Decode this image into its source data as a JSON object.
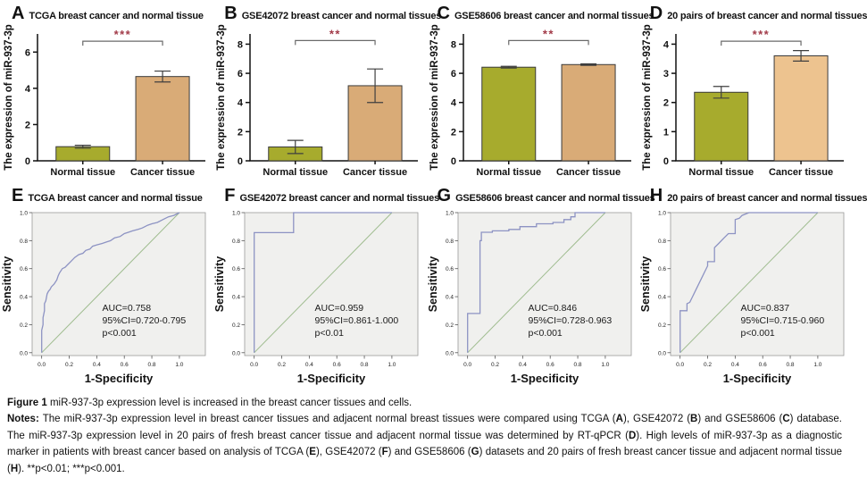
{
  "caption": {
    "title_segments": [
      {
        "t": "Figure 1 ",
        "b": true
      },
      {
        "t": "miR-937-3p expression level is increased in the breast cancer tissues and cells.",
        "b": false
      }
    ],
    "notes_segments": [
      {
        "t": "Notes: ",
        "b": true
      },
      {
        "t": "The miR-937-3p expression level in breast cancer tissues and adjacent normal breast tissues were compared using TCGA (",
        "b": false
      },
      {
        "t": "A",
        "b": true
      },
      {
        "t": "), GSE42072 (",
        "b": false
      },
      {
        "t": "B",
        "b": true
      },
      {
        "t": ") and GSE58606 (",
        "b": false
      },
      {
        "t": "C",
        "b": true
      },
      {
        "t": ") database. The miR-937-3p expression level in 20 pairs of fresh breast cancer tissue and adjacent normal tissue was determined by RT-qPCR (",
        "b": false
      },
      {
        "t": "D",
        "b": true
      },
      {
        "t": "). High levels of miR-937-3p as a diagnostic marker in patients with breast cancer based on analysis of TCGA (",
        "b": false
      },
      {
        "t": "E",
        "b": true
      },
      {
        "t": "), GSE42072 (",
        "b": false
      },
      {
        "t": "F",
        "b": true
      },
      {
        "t": ") and GSE58606 (",
        "b": false
      },
      {
        "t": "G",
        "b": true
      },
      {
        "t": ") datasets and 20 pairs of fresh breast cancer tissue and adjacent normal tissue (",
        "b": false
      },
      {
        "t": "H",
        "b": true
      },
      {
        "t": "). **p<0.01; ***p<0.001.",
        "b": false
      }
    ]
  },
  "chart_data": [
    {
      "type": "bar",
      "panel_letter": "A",
      "title": "TCGA breast cancer and normal tissue",
      "ylabel": "The expression of miR-937-3p",
      "categories": [
        "Normal tissue",
        "Cancer tissue"
      ],
      "values": [
        0.78,
        4.65
      ],
      "errors": [
        0.08,
        0.3
      ],
      "yticks": [
        0,
        2,
        4,
        6
      ],
      "axis_max": 7,
      "bracket_y": 6.6,
      "significance": "***",
      "sig_color": "#a23b49",
      "bar_colors": [
        "#a7ab2d",
        "#d9ab77"
      ]
    },
    {
      "type": "bar",
      "panel_letter": "B",
      "title": "GSE42072  breast cancer and normal tissues",
      "ylabel": "The expression of miR-937-3p",
      "categories": [
        "Normal tissue",
        "Cancer tissue"
      ],
      "values": [
        0.95,
        5.15
      ],
      "errors": [
        0.45,
        1.15
      ],
      "yticks": [
        0,
        2,
        4,
        6,
        8
      ],
      "axis_max": 8.7,
      "bracket_y": 8.25,
      "significance": "**",
      "sig_color": "#a23b49",
      "bar_colors": [
        "#a7ab2d",
        "#d9ab77"
      ]
    },
    {
      "type": "bar",
      "panel_letter": "C",
      "title": "GSE58606 breast cancer and normal tissues",
      "ylabel": "The expression of miR-937-3p",
      "categories": [
        "Normal tissue",
        "Cancer tissue"
      ],
      "values": [
        6.42,
        6.6
      ],
      "errors": [
        0.06,
        0.05
      ],
      "yticks": [
        0,
        2,
        4,
        6,
        8
      ],
      "axis_max": 8.7,
      "bracket_y": 8.25,
      "significance": "**",
      "sig_color": "#a23b49",
      "bar_colors": [
        "#a7ab2d",
        "#d9ab77"
      ]
    },
    {
      "type": "bar",
      "panel_letter": "D",
      "title": "20 pairs of breast cancer and normal tissues",
      "ylabel": "The expression of miR-937-3p",
      "categories": [
        "Normal tissue",
        "Cancer tissue"
      ],
      "values": [
        2.35,
        3.6
      ],
      "errors": [
        0.2,
        0.18
      ],
      "yticks": [
        0,
        1,
        2,
        3,
        4
      ],
      "axis_max": 4.35,
      "bracket_y": 4.1,
      "significance": "***",
      "sig_color": "#a23b49",
      "bar_colors": [
        "#a7ab2d",
        "#edc38f"
      ]
    },
    {
      "type": "line",
      "panel_letter": "E",
      "title": "TCGA breast cancer and normal tissue",
      "xlabel": "1-Specificity",
      "ylabel": "Sensitivity",
      "xticks": [
        0,
        0.2,
        0.4,
        0.6,
        0.8,
        1.0
      ],
      "yticks": [
        0,
        0.2,
        0.4,
        0.6,
        0.8,
        1.0
      ],
      "annotation": [
        "AUC=0.758",
        "95%CI=0.720-0.795",
        "p<0.001"
      ],
      "curve_color": "#8d93c3",
      "diagonal_color": "#9fbc8f",
      "plot_bg": "#f0f0ee",
      "roc_points": [
        [
          0,
          0
        ],
        [
          0,
          0.16
        ],
        [
          0.01,
          0.2
        ],
        [
          0.01,
          0.25
        ],
        [
          0.02,
          0.3
        ],
        [
          0.02,
          0.35
        ],
        [
          0.03,
          0.37
        ],
        [
          0.04,
          0.42
        ],
        [
          0.05,
          0.44
        ],
        [
          0.06,
          0.45
        ],
        [
          0.07,
          0.47
        ],
        [
          0.09,
          0.49
        ],
        [
          0.11,
          0.52
        ],
        [
          0.12,
          0.55
        ],
        [
          0.13,
          0.57
        ],
        [
          0.15,
          0.6
        ],
        [
          0.17,
          0.61
        ],
        [
          0.19,
          0.63
        ],
        [
          0.21,
          0.65
        ],
        [
          0.24,
          0.68
        ],
        [
          0.27,
          0.7
        ],
        [
          0.3,
          0.71
        ],
        [
          0.32,
          0.73
        ],
        [
          0.35,
          0.74
        ],
        [
          0.37,
          0.76
        ],
        [
          0.4,
          0.77
        ],
        [
          0.44,
          0.78
        ],
        [
          0.47,
          0.79
        ],
        [
          0.5,
          0.8
        ],
        [
          0.53,
          0.82
        ],
        [
          0.57,
          0.83
        ],
        [
          0.6,
          0.85
        ],
        [
          0.63,
          0.86
        ],
        [
          0.66,
          0.87
        ],
        [
          0.7,
          0.88
        ],
        [
          0.73,
          0.89
        ],
        [
          0.77,
          0.91
        ],
        [
          0.8,
          0.92
        ],
        [
          0.84,
          0.93
        ],
        [
          0.88,
          0.95
        ],
        [
          0.92,
          0.97
        ],
        [
          0.96,
          0.98
        ],
        [
          1,
          1
        ]
      ]
    },
    {
      "type": "line",
      "panel_letter": "F",
      "title": "GSE42072  breast cancer and normal tissues",
      "xlabel": "1-Specificity",
      "ylabel": "Sensitivity",
      "xticks": [
        0,
        0.2,
        0.4,
        0.6,
        0.8,
        1.0
      ],
      "yticks": [
        0,
        0.2,
        0.4,
        0.6,
        0.8,
        1.0
      ],
      "annotation": [
        "AUC=0.959",
        "95%CI=0.861-1.000",
        "p<0.01"
      ],
      "curve_color": "#8d93c3",
      "diagonal_color": "#9fbc8f",
      "plot_bg": "#f0f0ee",
      "roc_points": [
        [
          0,
          0
        ],
        [
          0,
          0.857
        ],
        [
          0.286,
          0.857
        ],
        [
          0.286,
          1
        ],
        [
          1,
          1
        ]
      ]
    },
    {
      "type": "line",
      "panel_letter": "G",
      "title": "GSE58606 breast cancer and normal tissues",
      "xlabel": "1-Specificity",
      "ylabel": "Sensitivity",
      "xticks": [
        0,
        0.2,
        0.4,
        0.6,
        0.8,
        1.0
      ],
      "yticks": [
        0,
        0.2,
        0.4,
        0.6,
        0.8,
        1.0
      ],
      "annotation": [
        "AUC=0.846",
        "95%CI=0.728-0.963",
        "p<0.001"
      ],
      "curve_color": "#8d93c3",
      "diagonal_color": "#9fbc8f",
      "plot_bg": "#f0f0ee",
      "roc_points": [
        [
          0,
          0
        ],
        [
          0,
          0.28
        ],
        [
          0.04,
          0.28
        ],
        [
          0.09,
          0.28
        ],
        [
          0.09,
          0.8
        ],
        [
          0.1,
          0.8
        ],
        [
          0.1,
          0.86
        ],
        [
          0.18,
          0.86
        ],
        [
          0.18,
          0.87
        ],
        [
          0.3,
          0.87
        ],
        [
          0.3,
          0.88
        ],
        [
          0.38,
          0.88
        ],
        [
          0.38,
          0.9
        ],
        [
          0.5,
          0.9
        ],
        [
          0.5,
          0.92
        ],
        [
          0.62,
          0.92
        ],
        [
          0.62,
          0.93
        ],
        [
          0.7,
          0.93
        ],
        [
          0.7,
          0.95
        ],
        [
          0.75,
          0.95
        ],
        [
          0.75,
          0.97
        ],
        [
          0.78,
          0.97
        ],
        [
          0.78,
          1
        ],
        [
          0.85,
          1
        ],
        [
          1,
          1
        ]
      ]
    },
    {
      "type": "line",
      "panel_letter": "H",
      "title": "20 pairs of breast cancer and normal tissues",
      "xlabel": "1-Specificity",
      "ylabel": "Sensitivity",
      "xticks": [
        0,
        0.2,
        0.4,
        0.6,
        0.8,
        1.0
      ],
      "yticks": [
        0,
        0.2,
        0.4,
        0.6,
        0.8,
        1.0
      ],
      "annotation": [
        "AUC=0.837",
        "95%CI=0.715-0.960",
        "p<0.001"
      ],
      "curve_color": "#8d93c3",
      "diagonal_color": "#9fbc8f",
      "plot_bg": "#f0f0ee",
      "roc_points": [
        [
          0,
          0
        ],
        [
          0,
          0.3
        ],
        [
          0.05,
          0.3
        ],
        [
          0.05,
          0.35
        ],
        [
          0.07,
          0.36
        ],
        [
          0.09,
          0.4
        ],
        [
          0.12,
          0.46
        ],
        [
          0.15,
          0.52
        ],
        [
          0.18,
          0.58
        ],
        [
          0.2,
          0.62
        ],
        [
          0.2,
          0.65
        ],
        [
          0.25,
          0.65
        ],
        [
          0.25,
          0.75
        ],
        [
          0.28,
          0.78
        ],
        [
          0.32,
          0.82
        ],
        [
          0.35,
          0.85
        ],
        [
          0.4,
          0.85
        ],
        [
          0.4,
          0.95
        ],
        [
          0.43,
          0.96
        ],
        [
          0.45,
          0.98
        ],
        [
          0.5,
          1
        ],
        [
          1,
          1
        ]
      ]
    }
  ]
}
